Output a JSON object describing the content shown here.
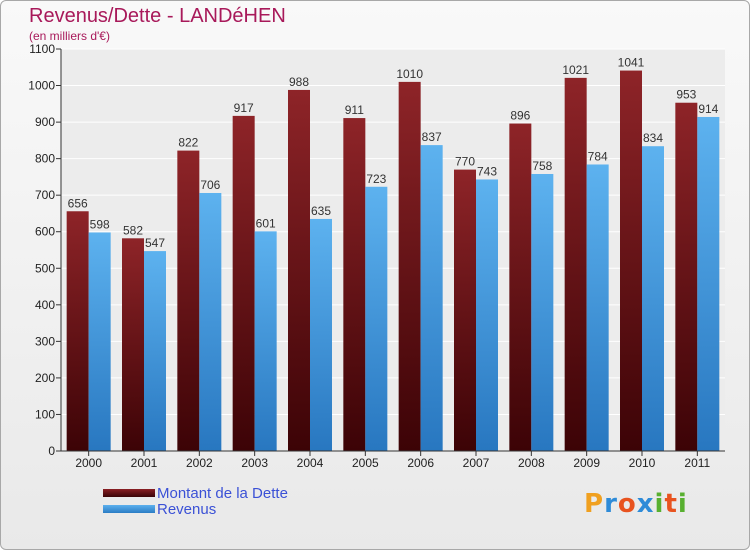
{
  "chart_data": {
    "type": "bar",
    "title": "Revenus/Dette - LANDéHEN",
    "subtitle": "(en milliers d'€)",
    "categories": [
      "2000",
      "2001",
      "2002",
      "2003",
      "2004",
      "2005",
      "2006",
      "2007",
      "2008",
      "2009",
      "2010",
      "2011"
    ],
    "series": [
      {
        "name": "Montant de la Dette",
        "values": [
          656,
          582,
          822,
          917,
          988,
          911,
          1010,
          770,
          896,
          1021,
          1041,
          953
        ],
        "color": "#7a1a1e"
      },
      {
        "name": "Revenus",
        "values": [
          598,
          547,
          706,
          601,
          635,
          723,
          837,
          743,
          758,
          784,
          834,
          914
        ],
        "color": "#4ea3e4"
      }
    ],
    "ylim": [
      0,
      1100
    ],
    "yticks": [
      0,
      100,
      200,
      300,
      400,
      500,
      600,
      700,
      800,
      900,
      1000,
      1100
    ],
    "grid": true,
    "legend_placement": "bottom-left"
  },
  "logo": {
    "letters": [
      "P",
      "r",
      "o",
      "x",
      "i",
      "t",
      "i"
    ],
    "colors": [
      "#f0a020",
      "#2e8bd8",
      "#e8531f",
      "#2e8bd8",
      "#58b030",
      "#e8531f",
      "#58b030"
    ]
  }
}
